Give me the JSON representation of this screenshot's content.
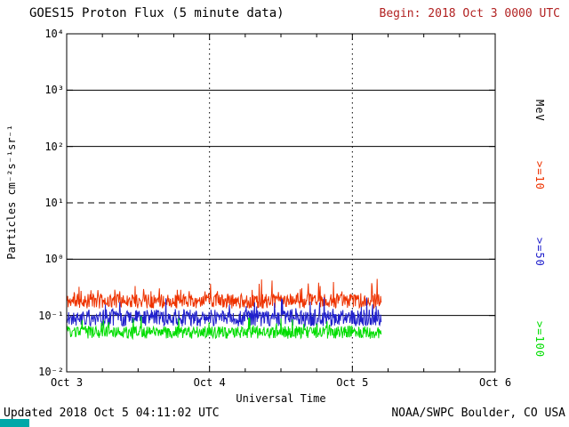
{
  "footer": {
    "updated": "Updated 2018 Oct  5 04:11:02 UTC",
    "credit": "NOAA/SWPC Boulder, CO USA"
  },
  "artifact": {
    "color": "#00a8a8"
  },
  "chart_data": {
    "type": "line",
    "title": "GOES15 Proton Flux (5 minute data)",
    "begin_label": "Begin: 2018 Oct 3 0000 UTC",
    "begin_color": "#b22222",
    "xlabel": "Universal Time",
    "ylabel": "Particles cm⁻²s⁻¹sr⁻¹",
    "x_range_days": [
      0,
      3
    ],
    "y_log_range": [
      -2,
      4
    ],
    "x_ticks": [
      {
        "label": "Oct 3",
        "day": 0
      },
      {
        "label": "Oct 4",
        "day": 1
      },
      {
        "label": "Oct 5",
        "day": 2
      },
      {
        "label": "Oct 6",
        "day": 3
      }
    ],
    "grid": {
      "solid_hlines_log10": [
        3,
        2,
        0,
        -1
      ],
      "dashed_hline_log10": 1,
      "dotted_vlines_day": [
        1,
        2
      ],
      "minor_xtick_days": 0.25
    },
    "sample_interval_minutes": 5,
    "data_end_day": 2.2,
    "series": [
      {
        "name": ">=10 MeV",
        "color": "#ee3300",
        "mean_flux": 0.18,
        "min_flux": 0.12,
        "max_flux": 0.5,
        "seed": 11,
        "jitter_log": 0.13,
        "spike_prob": 0.1,
        "spike_log": 0.3
      },
      {
        "name": ">=50 MeV",
        "color": "#2020cc",
        "mean_flux": 0.09,
        "min_flux": 0.06,
        "max_flux": 0.25,
        "seed": 22,
        "jitter_log": 0.15,
        "spike_prob": 0.08,
        "spike_log": 0.3
      },
      {
        "name": ">=100 MeV",
        "color": "#00dd00",
        "mean_flux": 0.05,
        "min_flux": 0.038,
        "max_flux": 0.1,
        "seed": 33,
        "jitter_log": 0.11,
        "spike_prob": 0.06,
        "spike_log": 0.2
      }
    ],
    "right_labels": [
      {
        "text": "MeV",
        "color": "#000000",
        "center_log10": 2.65
      },
      {
        "text": ">=10",
        "color": "#ee3300",
        "center_log10": 1.5
      },
      {
        "text": ">=50",
        "color": "#2020cc",
        "center_log10": 0.15
      },
      {
        "text": ">=100",
        "color": "#00dd00",
        "center_log10": -1.4
      }
    ]
  }
}
